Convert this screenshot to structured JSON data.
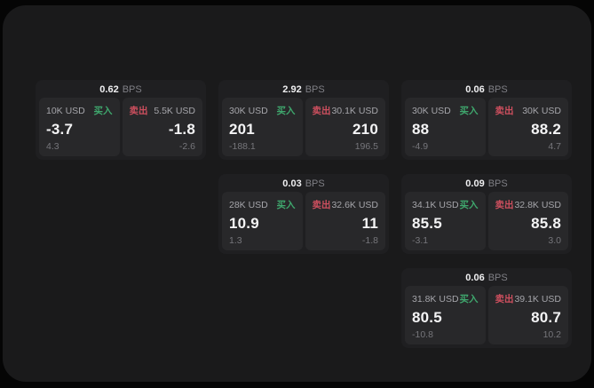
{
  "labels": {
    "bps_unit": "BPS",
    "buy": "买入",
    "sell": "卖出"
  },
  "colors": {
    "background": "#050505",
    "panel": "#1a1a1b",
    "card": "#1f1f21",
    "tile": "#28282a",
    "buy_green": "#3fa76d",
    "sell_red": "#cd4f5e",
    "text_primary": "#f4f4f5",
    "text_secondary": "#a5a5aa",
    "text_muted": "#76767b"
  },
  "cards": [
    {
      "bps": "0.62",
      "buy": {
        "amount": "10K USD",
        "price": "-3.7",
        "delta": "4.3"
      },
      "sell": {
        "amount": "5.5K USD",
        "price": "-1.8",
        "delta": "-2.6"
      }
    },
    {
      "bps": "2.92",
      "buy": {
        "amount": "30K USD",
        "price": "201",
        "delta": "-188.1"
      },
      "sell": {
        "amount": "30.1K USD",
        "price": "210",
        "delta": "196.5"
      }
    },
    {
      "bps": "0.06",
      "buy": {
        "amount": "30K USD",
        "price": "88",
        "delta": "-4.9"
      },
      "sell": {
        "amount": "30K USD",
        "price": "88.2",
        "delta": "4.7"
      }
    },
    {
      "bps": "0.03",
      "buy": {
        "amount": "28K USD",
        "price": "10.9",
        "delta": "1.3"
      },
      "sell": {
        "amount": "32.6K USD",
        "price": "11",
        "delta": "-1.8"
      }
    },
    {
      "bps": "0.09",
      "buy": {
        "amount": "34.1K USD",
        "price": "85.5",
        "delta": "-3.1"
      },
      "sell": {
        "amount": "32.8K USD",
        "price": "85.8",
        "delta": "3.0"
      }
    },
    {
      "bps": "0.06",
      "buy": {
        "amount": "31.8K USD",
        "price": "80.5",
        "delta": "-10.8"
      },
      "sell": {
        "amount": "39.1K USD",
        "price": "80.7",
        "delta": "10.2"
      }
    }
  ]
}
